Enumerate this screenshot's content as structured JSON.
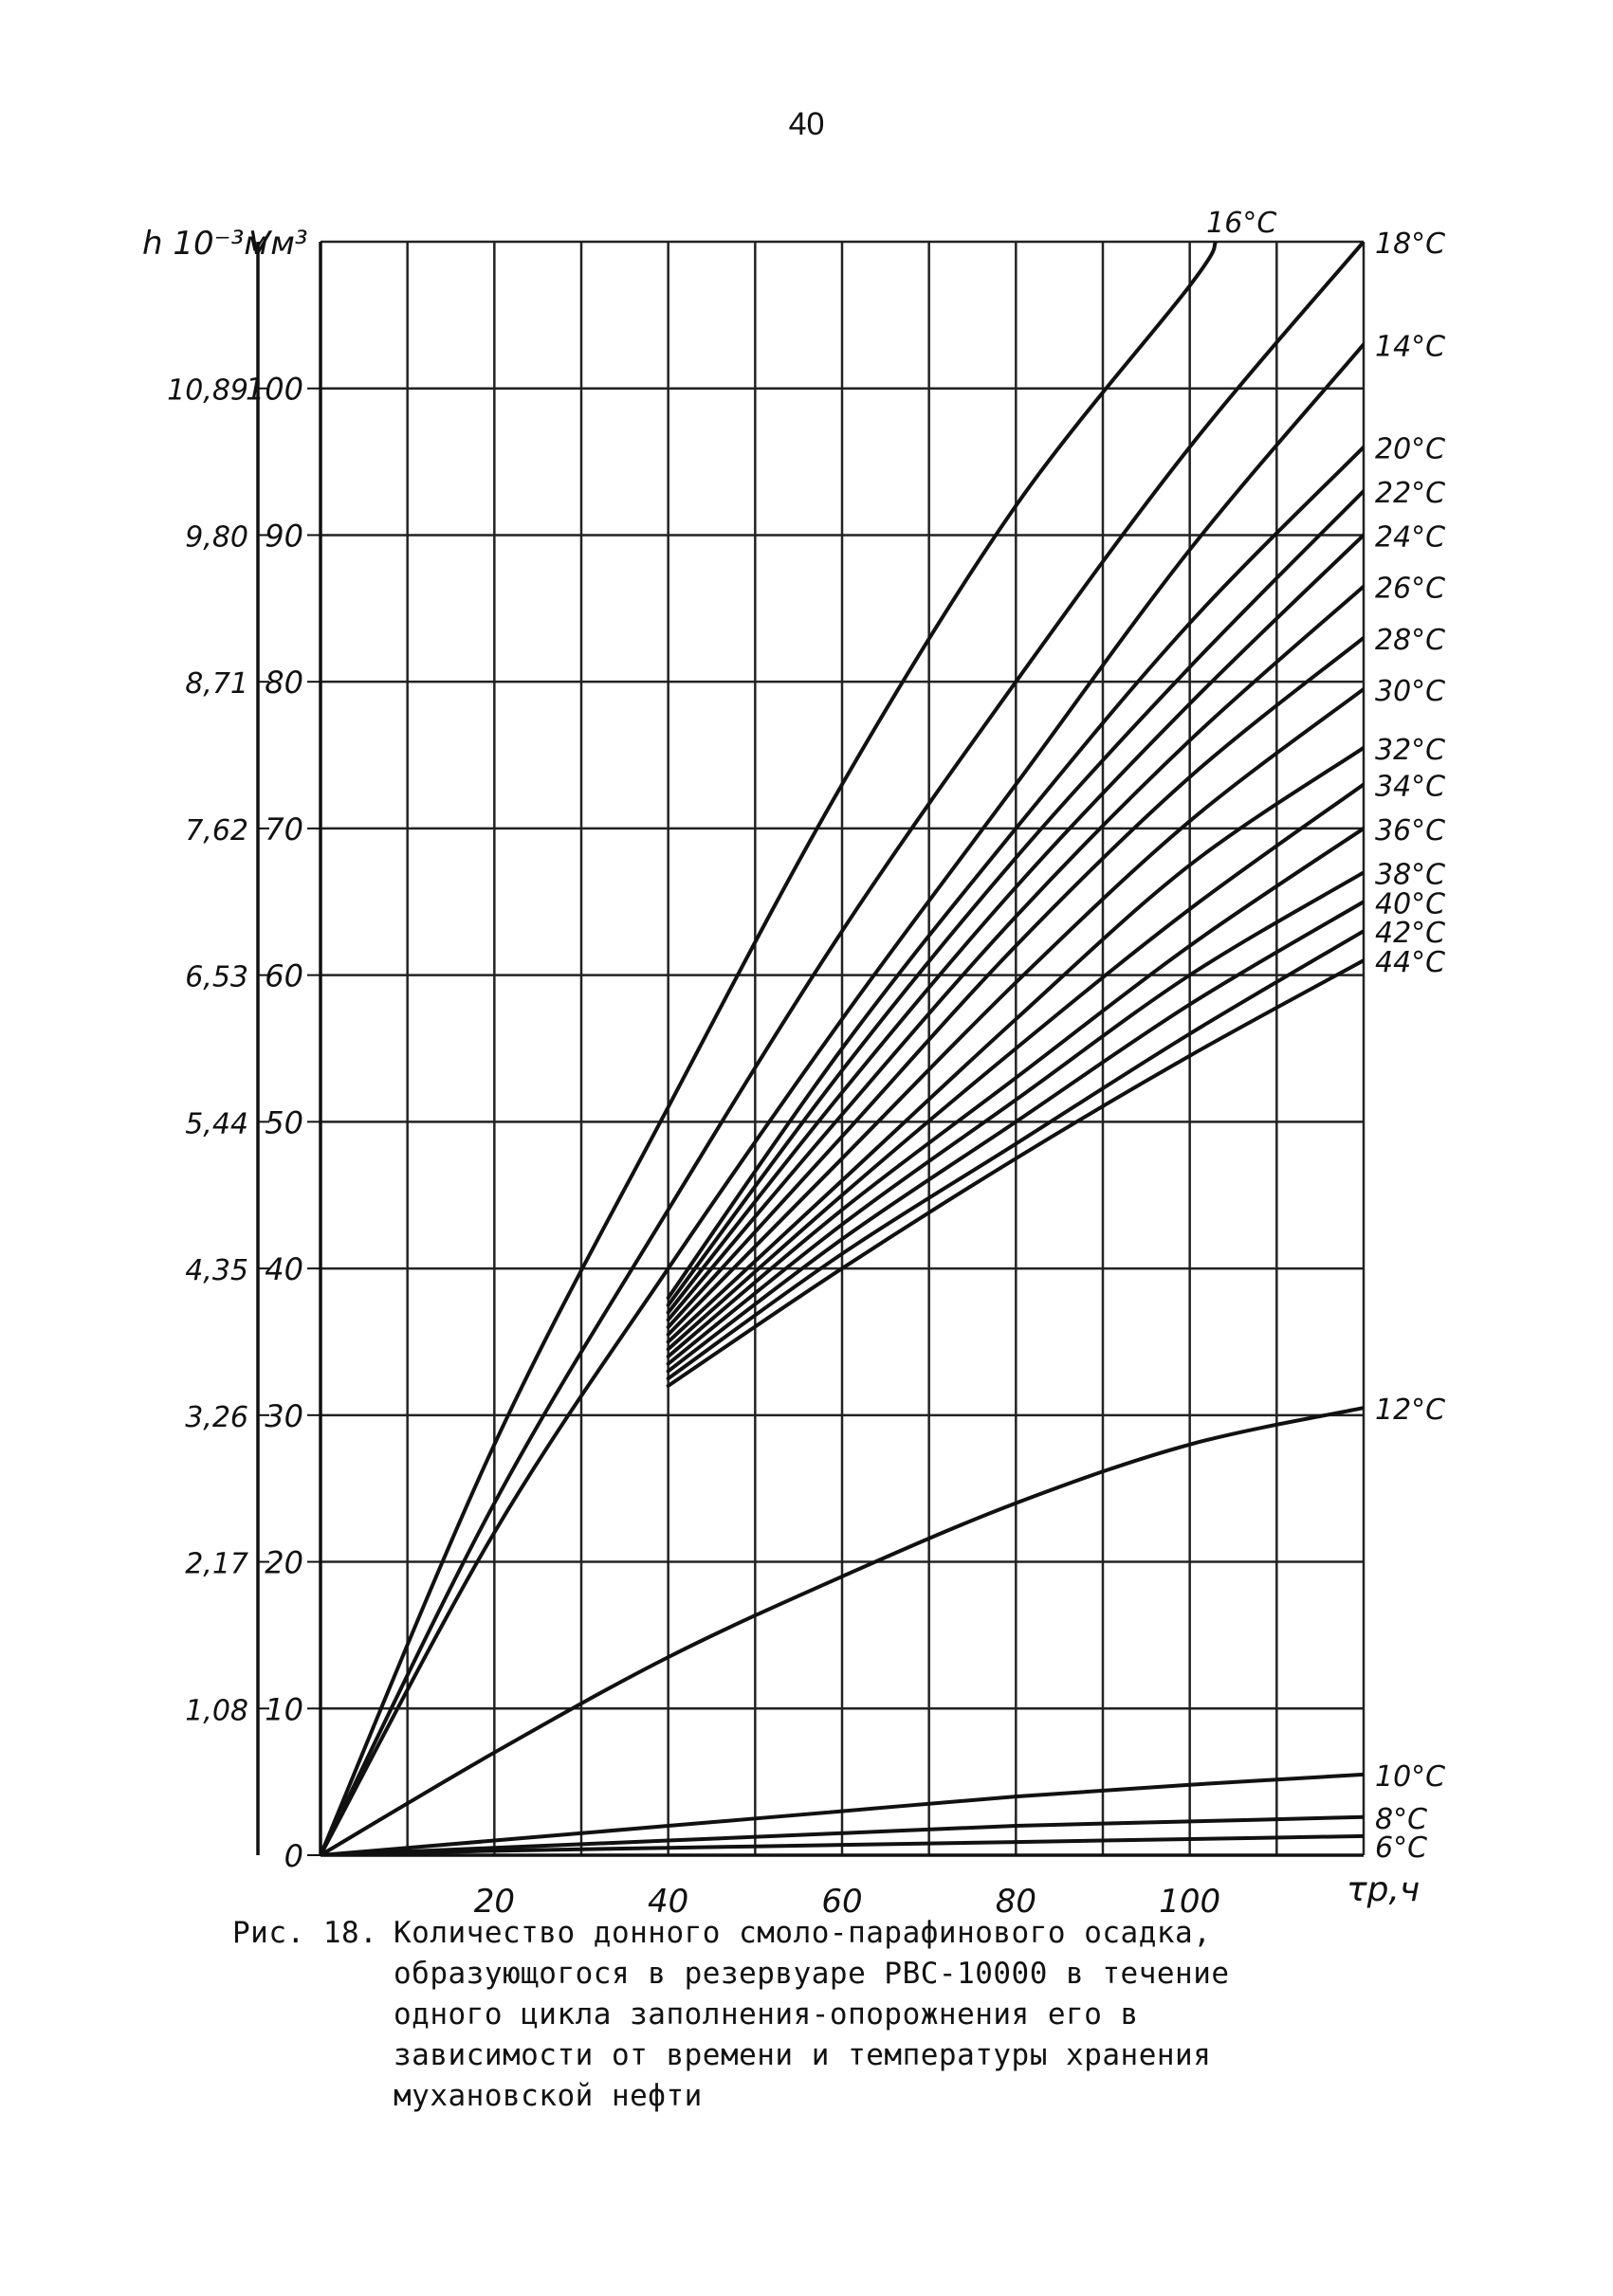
{
  "page_number": "40",
  "caption": {
    "prefix": "Рис. 18.",
    "lines": [
      "Количество донного смоло-парафинового осадка,",
      "образующогося в резервуаре РВС-10000 в течение",
      "одного цикла заполнения-опорожнения  его  в",
      "зависимости от времени и температуры хранения",
      "мухановской нефти"
    ]
  },
  "chart_data": {
    "type": "line",
    "x_axis": {
      "label": "τр,ч",
      "ticks": [
        20,
        40,
        60,
        80,
        100
      ],
      "range": [
        0,
        120
      ],
      "minor_step": 10
    },
    "y_axis": {
      "label": "Vм³",
      "ticks": [
        0,
        10,
        20,
        30,
        40,
        50,
        60,
        70,
        80,
        90,
        100
      ],
      "range": [
        0,
        110
      ]
    },
    "y_axis_secondary": {
      "label": "h 10⁻³м",
      "ticks": [
        "1,08",
        "2,17",
        "3,26",
        "4,35",
        "5,44",
        "6,53",
        "7,62",
        "8,71",
        "9,80",
        "10,89"
      ],
      "tick_positions": [
        10,
        20,
        30,
        40,
        50,
        60,
        70,
        80,
        90,
        100
      ]
    },
    "grid": true,
    "series": [
      {
        "name": "16°C",
        "x": [
          0,
          20,
          40,
          60,
          80,
          100,
          103
        ],
        "y": [
          0,
          28,
          51,
          73,
          92,
          107,
          110
        ]
      },
      {
        "name": "18°C",
        "x": [
          0,
          20,
          40,
          60,
          80,
          100,
          120
        ],
        "y": [
          0,
          24,
          44,
          63,
          80,
          96,
          110
        ]
      },
      {
        "name": "14°C",
        "x": [
          0,
          20,
          40,
          60,
          80,
          100,
          120
        ],
        "y": [
          0,
          22,
          40,
          57,
          73,
          89,
          103
        ]
      },
      {
        "name": "20°C",
        "x": [
          40,
          60,
          80,
          100,
          120
        ],
        "y": [
          38,
          55,
          70,
          84,
          96
        ]
      },
      {
        "name": "22°C",
        "x": [
          40,
          60,
          80,
          100,
          120
        ],
        "y": [
          37.5,
          53.5,
          68,
          81,
          93
        ]
      },
      {
        "name": "24°C",
        "x": [
          40,
          60,
          80,
          100,
          120
        ],
        "y": [
          37,
          52,
          66,
          78.5,
          90
        ]
      },
      {
        "name": "26°C",
        "x": [
          40,
          60,
          80,
          100,
          120
        ],
        "y": [
          36.5,
          50.5,
          64,
          76,
          86.5
        ]
      },
      {
        "name": "28°C",
        "x": [
          40,
          60,
          80,
          100,
          120
        ],
        "y": [
          36,
          49,
          62,
          73.5,
          83
        ]
      },
      {
        "name": "30°C",
        "x": [
          40,
          60,
          80,
          100,
          120
        ],
        "y": [
          35.5,
          47.5,
          59.5,
          70.5,
          79.5
        ]
      },
      {
        "name": "32°C",
        "x": [
          40,
          60,
          80,
          100,
          120
        ],
        "y": [
          35,
          46,
          57,
          67.5,
          75.5
        ]
      },
      {
        "name": "34°C",
        "x": [
          40,
          60,
          80,
          100,
          120
        ],
        "y": [
          34.5,
          45,
          55,
          64.5,
          73
        ]
      },
      {
        "name": "36°C",
        "x": [
          40,
          60,
          80,
          100,
          120
        ],
        "y": [
          34,
          44,
          53,
          62,
          70
        ]
      },
      {
        "name": "38°C",
        "x": [
          40,
          60,
          80,
          100,
          120
        ],
        "y": [
          33.5,
          43,
          51.5,
          60,
          67
        ]
      },
      {
        "name": "40°C",
        "x": [
          40,
          60,
          80,
          100,
          120
        ],
        "y": [
          33,
          42,
          50,
          58,
          65
        ]
      },
      {
        "name": "42°C",
        "x": [
          40,
          60,
          80,
          100,
          120
        ],
        "y": [
          32.5,
          41,
          48.5,
          56,
          63
        ]
      },
      {
        "name": "44°C",
        "x": [
          40,
          60,
          80,
          100,
          120
        ],
        "y": [
          32,
          40,
          47.5,
          54.5,
          61
        ]
      },
      {
        "name": "12°C",
        "x": [
          0,
          20,
          40,
          60,
          80,
          100,
          120
        ],
        "y": [
          0,
          7,
          13.5,
          19,
          24,
          28,
          30.5
        ]
      },
      {
        "name": "10°C",
        "x": [
          0,
          20,
          40,
          60,
          80,
          100,
          120
        ],
        "y": [
          0,
          1,
          2,
          3,
          4,
          4.8,
          5.5
        ]
      },
      {
        "name": "8°C",
        "x": [
          0,
          20,
          40,
          60,
          80,
          100,
          120
        ],
        "y": [
          0,
          0.5,
          1,
          1.5,
          2,
          2.3,
          2.6
        ]
      },
      {
        "name": "6°C",
        "x": [
          0,
          20,
          40,
          60,
          80,
          100,
          120
        ],
        "y": [
          0,
          0.3,
          0.5,
          0.7,
          0.9,
          1.1,
          1.3
        ]
      }
    ]
  }
}
